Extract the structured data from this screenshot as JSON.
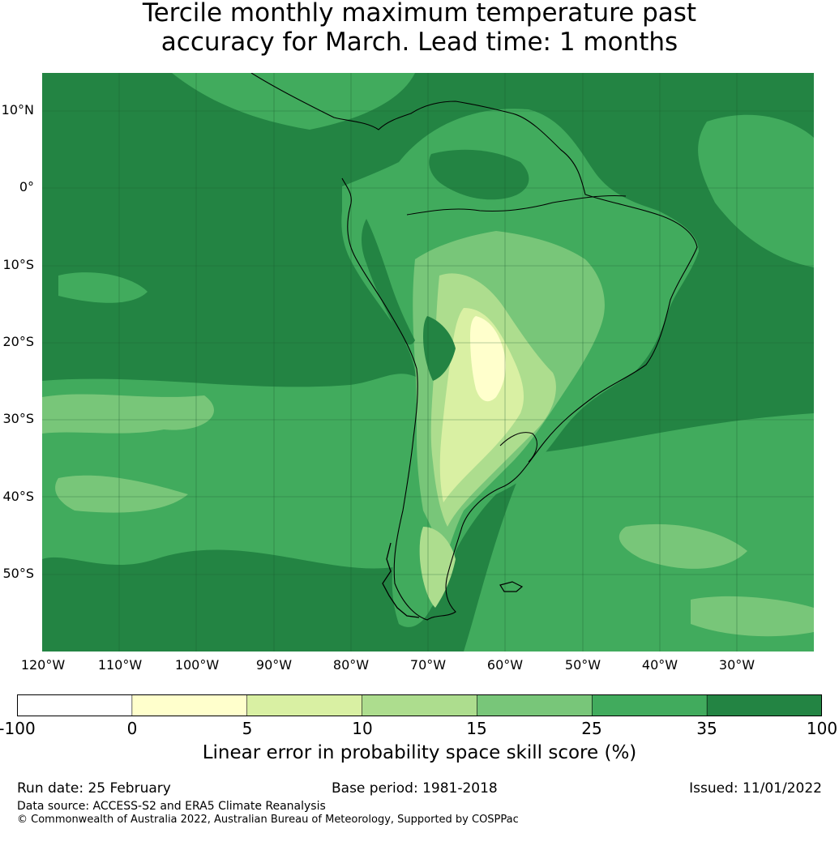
{
  "title_line1": "Tercile monthly maximum temperature past",
  "title_line2": "accuracy for March. Lead time: 1 months",
  "lat_labels": [
    "10°N",
    "0°",
    "10°S",
    "20°S",
    "30°S",
    "40°S",
    "50°S"
  ],
  "lon_labels": [
    "120°W",
    "110°W",
    "100°W",
    "90°W",
    "80°W",
    "70°W",
    "60°W",
    "50°W",
    "40°W",
    "30°W"
  ],
  "colorbar": {
    "ticks": [
      "-100",
      "0",
      "5",
      "10",
      "15",
      "25",
      "35",
      "100"
    ],
    "colors": [
      "#ffffff",
      "#ffffcc",
      "#d9f0a3",
      "#addd8e",
      "#78c679",
      "#41ab5d",
      "#238443"
    ],
    "label": "Linear error in probability space skill score (%)"
  },
  "footer": {
    "run_date": "Run date: 25 February",
    "base_period": "Base period: 1981-2018",
    "issued": "Issued: 11/01/2022",
    "data_source": "Data source: ACCESS-S2 and ERA5 Climate Reanalysis",
    "copyright": "© Commonwealth of Australia 2022, Australian Bureau of Meteorology, Supported by COSPPac"
  }
}
